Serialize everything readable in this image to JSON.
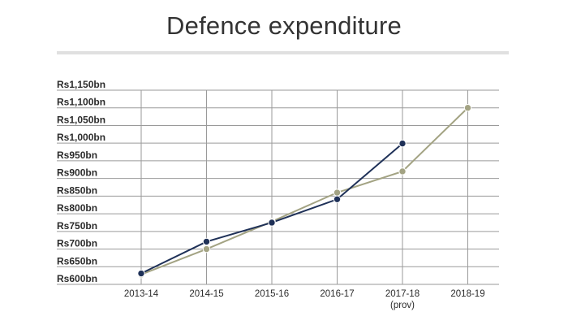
{
  "title": "Defence expenditure",
  "chart_data": {
    "type": "line",
    "title": "Defence expenditure",
    "xlabel": "",
    "ylabel": "",
    "categories": [
      "2013-14",
      "2014-15",
      "2015-16",
      "2016-17",
      "2017-18",
      "2018-19"
    ],
    "category_sublabels": [
      "",
      "",
      "",
      "",
      "(prov)",
      ""
    ],
    "y_tick_labels": [
      "Rs600bn",
      "Rs650bn",
      "Rs700bn",
      "Rs750bn",
      "Rs800bn",
      "Rs850bn",
      "Rs900bn",
      "Rs950bn",
      "Rs1,000bn",
      "Rs1,050bn",
      "Rs1,100bn",
      "Rs1,150bn"
    ],
    "y_ticks": [
      600,
      650,
      700,
      750,
      800,
      850,
      900,
      950,
      1000,
      1050,
      1100,
      1150
    ],
    "ylim": [
      600,
      1150
    ],
    "grid": true,
    "series": [
      {
        "color": "#1f3158",
        "values": [
          631,
          721,
          775,
          841,
          999,
          null
        ]
      },
      {
        "color": "#a3a383",
        "values": [
          628,
          700,
          778,
          860,
          920,
          1100
        ]
      }
    ]
  }
}
